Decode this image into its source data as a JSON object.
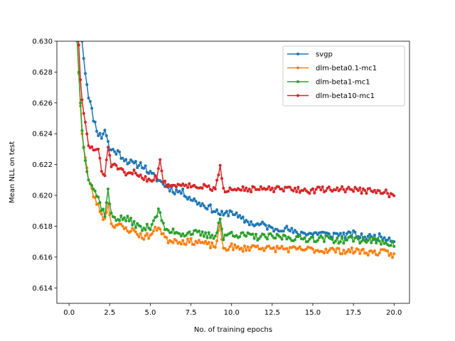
{
  "chart_data": {
    "type": "line",
    "title": "",
    "xlabel": "No. of training epochs",
    "ylabel": "Mean NLL on test",
    "xlim": [
      -0.75,
      20.95
    ],
    "ylim": [
      0.613,
      0.63
    ],
    "xticks": [
      0.0,
      2.5,
      5.0,
      7.5,
      10.0,
      12.5,
      15.0,
      17.5,
      20.0
    ],
    "xtick_labels": [
      "0.0",
      "2.5",
      "5.0",
      "7.5",
      "10.0",
      "12.5",
      "15.0",
      "17.5",
      "20.0"
    ],
    "yticks": [
      0.614,
      0.616,
      0.618,
      0.62,
      0.622,
      0.624,
      0.626,
      0.628,
      0.63
    ],
    "ytick_labels": [
      "0.614",
      "0.616",
      "0.618",
      "0.620",
      "0.622",
      "0.624",
      "0.626",
      "0.628",
      "0.630"
    ],
    "grid": false,
    "legend": "top-right",
    "series": [
      {
        "name": "svgp",
        "color": "#1f77b4",
        "anchors": [
          [
            0.5,
            0.6352
          ],
          [
            0.7,
            0.631
          ],
          [
            1.0,
            0.628
          ],
          [
            1.2,
            0.6265
          ],
          [
            1.5,
            0.625
          ],
          [
            1.8,
            0.624
          ],
          [
            2.0,
            0.6238
          ],
          [
            2.2,
            0.6243
          ],
          [
            2.5,
            0.623
          ],
          [
            3.0,
            0.6228
          ],
          [
            3.5,
            0.6223
          ],
          [
            4.0,
            0.622
          ],
          [
            4.5,
            0.622
          ],
          [
            5.0,
            0.6214
          ],
          [
            5.5,
            0.621
          ],
          [
            6.0,
            0.6206
          ],
          [
            6.5,
            0.6203
          ],
          [
            7.0,
            0.6202
          ],
          [
            7.5,
            0.6198
          ],
          [
            8.0,
            0.6195
          ],
          [
            8.5,
            0.6193
          ],
          [
            9.0,
            0.619
          ],
          [
            9.5,
            0.6187
          ],
          [
            10.0,
            0.619
          ],
          [
            10.5,
            0.6185
          ],
          [
            11.0,
            0.6183
          ],
          [
            11.5,
            0.6181
          ],
          [
            12.0,
            0.6181
          ],
          [
            12.5,
            0.6178
          ],
          [
            13.0,
            0.6179
          ],
          [
            13.5,
            0.6178
          ],
          [
            14.0,
            0.6175
          ],
          [
            14.5,
            0.6176
          ],
          [
            15.0,
            0.6175
          ],
          [
            15.5,
            0.6176
          ],
          [
            16.0,
            0.6174
          ],
          [
            16.5,
            0.6175
          ],
          [
            17.0,
            0.6174
          ],
          [
            17.5,
            0.6175
          ],
          [
            18.0,
            0.6173
          ],
          [
            18.5,
            0.6173
          ],
          [
            19.0,
            0.6173
          ],
          [
            19.5,
            0.6173
          ],
          [
            20.0,
            0.6171
          ]
        ],
        "noise": 0.00022,
        "seed": 11
      },
      {
        "name": "dlm-beta0.1-mc1",
        "color": "#ff7f0e",
        "anchors": [
          [
            0.5,
            0.63
          ],
          [
            0.7,
            0.6258
          ],
          [
            0.8,
            0.624
          ],
          [
            1.0,
            0.6225
          ],
          [
            1.2,
            0.621
          ],
          [
            1.5,
            0.62
          ],
          [
            1.8,
            0.6193
          ],
          [
            2.0,
            0.6188
          ],
          [
            2.2,
            0.6184
          ],
          [
            2.4,
            0.6196
          ],
          [
            2.6,
            0.6181
          ],
          [
            3.0,
            0.6181
          ],
          [
            3.5,
            0.6178
          ],
          [
            4.0,
            0.6177
          ],
          [
            4.5,
            0.6173
          ],
          [
            5.0,
            0.6174
          ],
          [
            5.5,
            0.618
          ],
          [
            6.0,
            0.6171
          ],
          [
            6.5,
            0.6171
          ],
          [
            7.0,
            0.617
          ],
          [
            7.5,
            0.617
          ],
          [
            8.0,
            0.617
          ],
          [
            8.5,
            0.6168
          ],
          [
            9.0,
            0.6167
          ],
          [
            9.3,
            0.618
          ],
          [
            9.5,
            0.6165
          ],
          [
            10.0,
            0.6167
          ],
          [
            10.5,
            0.6165
          ],
          [
            11.0,
            0.6166
          ],
          [
            11.5,
            0.6167
          ],
          [
            12.0,
            0.6166
          ],
          [
            12.5,
            0.6165
          ],
          [
            13.0,
            0.6166
          ],
          [
            13.5,
            0.6165
          ],
          [
            14.0,
            0.6165
          ],
          [
            14.5,
            0.6165
          ],
          [
            15.0,
            0.6165
          ],
          [
            15.5,
            0.6164
          ],
          [
            16.0,
            0.6165
          ],
          [
            16.5,
            0.6164
          ],
          [
            17.0,
            0.6164
          ],
          [
            17.5,
            0.6164
          ],
          [
            18.0,
            0.6164
          ],
          [
            18.5,
            0.6163
          ],
          [
            19.0,
            0.6163
          ],
          [
            19.5,
            0.6163
          ],
          [
            20.0,
            0.6161
          ]
        ],
        "noise": 0.0002,
        "seed": 23
      },
      {
        "name": "dlm-beta1-mc1",
        "color": "#2ca02c",
        "anchors": [
          [
            0.5,
            0.63
          ],
          [
            0.7,
            0.626
          ],
          [
            0.8,
            0.6242
          ],
          [
            1.0,
            0.6222
          ],
          [
            1.2,
            0.6212
          ],
          [
            1.5,
            0.6205
          ],
          [
            1.8,
            0.6198
          ],
          [
            2.0,
            0.6192
          ],
          [
            2.2,
            0.6188
          ],
          [
            2.4,
            0.6203
          ],
          [
            2.6,
            0.6187
          ],
          [
            3.0,
            0.6185
          ],
          [
            3.5,
            0.6185
          ],
          [
            4.0,
            0.6182
          ],
          [
            4.5,
            0.6178
          ],
          [
            5.0,
            0.618
          ],
          [
            5.5,
            0.619
          ],
          [
            6.0,
            0.6176
          ],
          [
            6.5,
            0.6177
          ],
          [
            7.0,
            0.6175
          ],
          [
            7.5,
            0.6176
          ],
          [
            8.0,
            0.6175
          ],
          [
            8.5,
            0.6174
          ],
          [
            9.0,
            0.6174
          ],
          [
            9.3,
            0.6185
          ],
          [
            9.5,
            0.6172
          ],
          [
            10.0,
            0.6176
          ],
          [
            10.5,
            0.6174
          ],
          [
            11.0,
            0.6174
          ],
          [
            11.5,
            0.6173
          ],
          [
            12.0,
            0.6173
          ],
          [
            12.5,
            0.6173
          ],
          [
            13.0,
            0.6173
          ],
          [
            13.5,
            0.6173
          ],
          [
            14.0,
            0.6172
          ],
          [
            14.5,
            0.6172
          ],
          [
            15.0,
            0.6172
          ],
          [
            15.5,
            0.6172
          ],
          [
            16.0,
            0.6172
          ],
          [
            16.5,
            0.6171
          ],
          [
            17.0,
            0.6171
          ],
          [
            17.5,
            0.6172
          ],
          [
            18.0,
            0.6171
          ],
          [
            18.5,
            0.6171
          ],
          [
            19.0,
            0.617
          ],
          [
            19.5,
            0.617
          ],
          [
            20.0,
            0.6168
          ]
        ],
        "noise": 0.00022,
        "seed": 37
      },
      {
        "name": "dlm-beta10-mc1",
        "color": "#d62728",
        "anchors": [
          [
            0.5,
            0.632
          ],
          [
            0.7,
            0.6275
          ],
          [
            0.8,
            0.6262
          ],
          [
            1.0,
            0.6246
          ],
          [
            1.2,
            0.6232
          ],
          [
            1.5,
            0.623
          ],
          [
            1.8,
            0.623
          ],
          [
            2.0,
            0.6215
          ],
          [
            2.2,
            0.6213
          ],
          [
            2.4,
            0.6232
          ],
          [
            2.6,
            0.622
          ],
          [
            3.0,
            0.6218
          ],
          [
            3.5,
            0.6213
          ],
          [
            4.0,
            0.6215
          ],
          [
            4.5,
            0.6212
          ],
          [
            5.0,
            0.621
          ],
          [
            5.4,
            0.6212
          ],
          [
            5.6,
            0.6224
          ],
          [
            5.8,
            0.6208
          ],
          [
            6.5,
            0.6206
          ],
          [
            7.0,
            0.6208
          ],
          [
            7.5,
            0.6206
          ],
          [
            8.0,
            0.6206
          ],
          [
            8.5,
            0.6205
          ],
          [
            9.0,
            0.6204
          ],
          [
            9.3,
            0.6218
          ],
          [
            9.5,
            0.6203
          ],
          [
            10.0,
            0.6205
          ],
          [
            10.5,
            0.6205
          ],
          [
            11.0,
            0.6204
          ],
          [
            11.5,
            0.6204
          ],
          [
            12.0,
            0.6204
          ],
          [
            12.5,
            0.6204
          ],
          [
            13.0,
            0.6204
          ],
          [
            13.5,
            0.6204
          ],
          [
            14.0,
            0.6204
          ],
          [
            14.5,
            0.6203
          ],
          [
            15.0,
            0.6203
          ],
          [
            15.5,
            0.6204
          ],
          [
            16.0,
            0.6204
          ],
          [
            16.5,
            0.6204
          ],
          [
            17.0,
            0.6204
          ],
          [
            17.5,
            0.6204
          ],
          [
            18.0,
            0.6203
          ],
          [
            18.5,
            0.6203
          ],
          [
            19.0,
            0.6202
          ],
          [
            19.5,
            0.6202
          ],
          [
            20.0,
            0.6199
          ]
        ],
        "noise": 0.00018,
        "seed": 51
      }
    ]
  }
}
